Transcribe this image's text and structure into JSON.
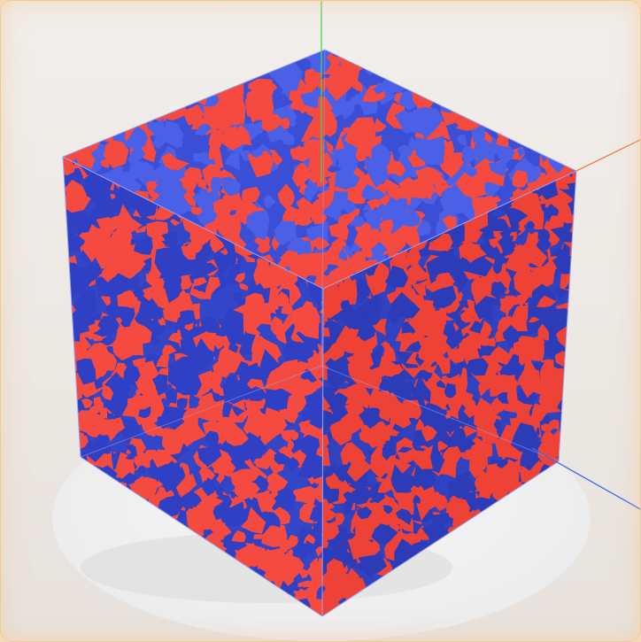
{
  "scene": {
    "object": "voxel-isosurface-cube",
    "colors": {
      "background_top": "#f1eeeb",
      "background_bottom": "#e6e1dc",
      "frame_border": "#f3c894",
      "ground_disc": "#f3f3f4",
      "ground_shadow": "#dcdcdc",
      "phase_a": "#f44a3f",
      "phase_b": "#3a4fd6",
      "bounding_box": "#9da3ee",
      "axis_x": "#f2803c",
      "axis_y": "#4ad24e",
      "axis_z": "#3e68ec"
    },
    "axes": [
      "x-axis",
      "y-axis",
      "z-axis"
    ]
  }
}
